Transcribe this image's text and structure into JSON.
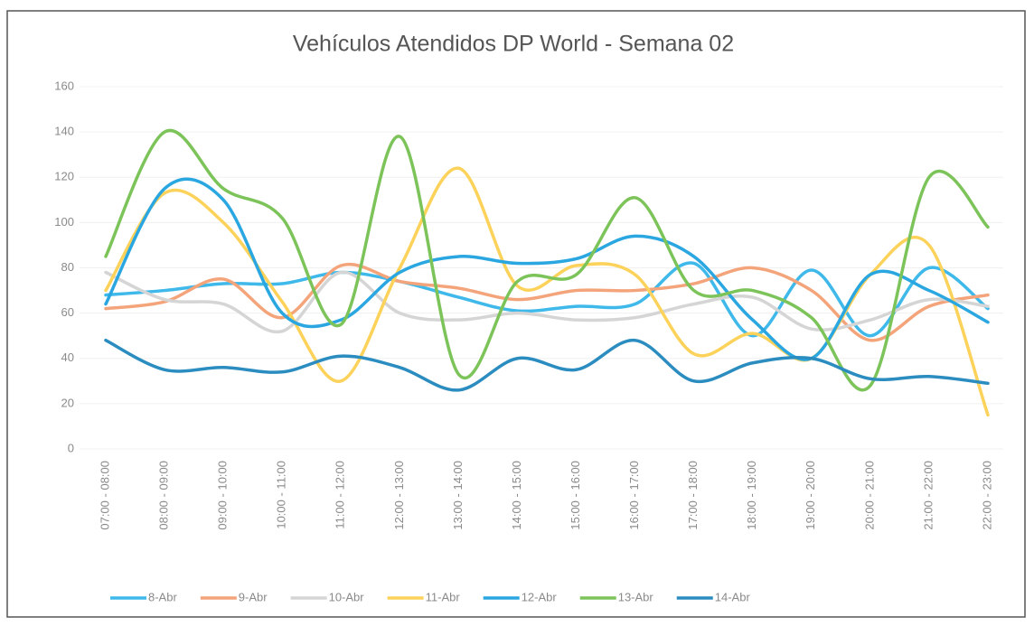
{
  "chart_data": {
    "type": "line",
    "title": "Vehículos Atendidos DP World - Semana 02",
    "categories": [
      "07:00 - 08:00",
      "08:00 - 09:00",
      "09:00 - 10:00",
      "10:00 - 11:00",
      "11:00 - 12:00",
      "12:00 - 13:00",
      "13:00 - 14:00",
      "14:00 - 15:00",
      "15:00 - 16:00",
      "16:00 - 17:00",
      "17:00 - 18:00",
      "18:00 - 19:00",
      "19:00 - 20:00",
      "20:00 - 21:00",
      "21:00 - 22:00",
      "22:00 - 23:00"
    ],
    "series": [
      {
        "name": "8-Abr",
        "color": "#3fb8ea",
        "values": [
          68,
          70,
          73,
          73,
          78,
          74,
          67,
          61,
          63,
          64,
          82,
          50,
          79,
          50,
          80,
          62
        ]
      },
      {
        "name": "9-Abr",
        "color": "#f4a47a",
        "values": [
          62,
          65,
          75,
          58,
          81,
          74,
          71,
          66,
          70,
          70,
          73,
          80,
          70,
          48,
          63,
          68
        ]
      },
      {
        "name": "10-Abr",
        "color": "#d5d5d5",
        "values": [
          78,
          66,
          64,
          52,
          78,
          60,
          57,
          60,
          57,
          58,
          64,
          67,
          53,
          57,
          66,
          63
        ]
      },
      {
        "name": "11-Abr",
        "color": "#fcd25a",
        "values": [
          70,
          113,
          100,
          65,
          30,
          80,
          124,
          72,
          81,
          77,
          42,
          51,
          40,
          77,
          90,
          15
        ]
      },
      {
        "name": "12-Abr",
        "color": "#2aa6e0",
        "values": [
          64,
          115,
          110,
          60,
          57,
          78,
          85,
          82,
          84,
          94,
          85,
          57,
          40,
          77,
          70,
          56
        ]
      },
      {
        "name": "13-Abr",
        "color": "#7cc45a",
        "values": [
          85,
          140,
          115,
          102,
          55,
          138,
          33,
          74,
          77,
          111,
          70,
          70,
          58,
          28,
          120,
          98
        ]
      },
      {
        "name": "14-Abr",
        "color": "#2b8cc0",
        "values": [
          48,
          35,
          36,
          34,
          41,
          36,
          26,
          40,
          35,
          48,
          30,
          38,
          40,
          31,
          32,
          29
        ]
      }
    ],
    "ylim": [
      0,
      160
    ],
    "yticks": [
      0,
      20,
      40,
      60,
      80,
      100,
      120,
      140,
      160
    ],
    "grid": true,
    "legend": "bottom"
  }
}
